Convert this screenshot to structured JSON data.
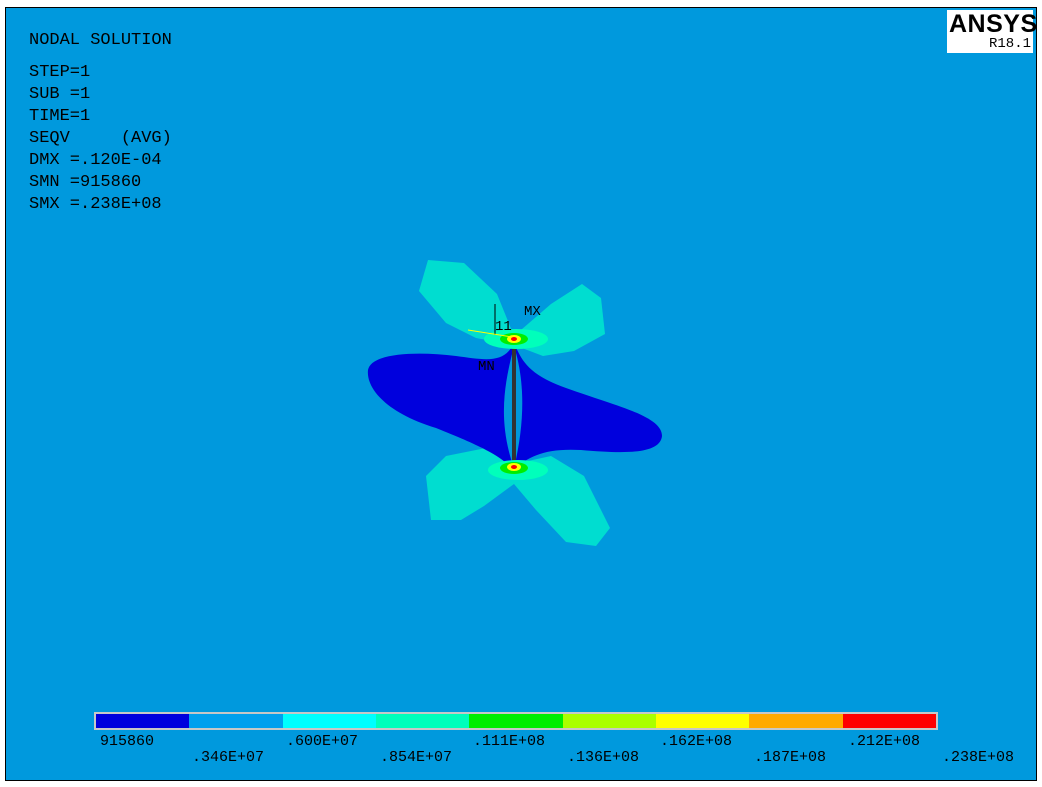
{
  "header": {
    "title": "NODAL SOLUTION",
    "lines": [
      "STEP=1",
      "SUB =1",
      "TIME=1",
      "SEQV     (AVG)",
      "DMX =.120E-04",
      "SMN =915860",
      "SMX =.238E+08"
    ]
  },
  "logo": {
    "name": "ANSYS",
    "release": "R18.1"
  },
  "plot": {
    "node_label": "11",
    "max_label": "MX",
    "min_label": "MN"
  },
  "legend": {
    "colors": [
      "#0000dd",
      "#00a0ee",
      "#00ffff",
      "#00ffbb",
      "#00ee00",
      "#aaff00",
      "#ffff00",
      "#ffaa00",
      "#ff0000"
    ],
    "labels": [
      ".346E+07",
      ".600E+07",
      ".854E+07",
      ".111E+08",
      ".136E+08",
      ".162E+08",
      ".187E+08",
      ".212E+08",
      ".238E+08"
    ],
    "min_label": "915860"
  },
  "colors": {
    "background": "#0099dd",
    "low_stress": "#0000dd",
    "mid_stress": "#00ddd0"
  }
}
